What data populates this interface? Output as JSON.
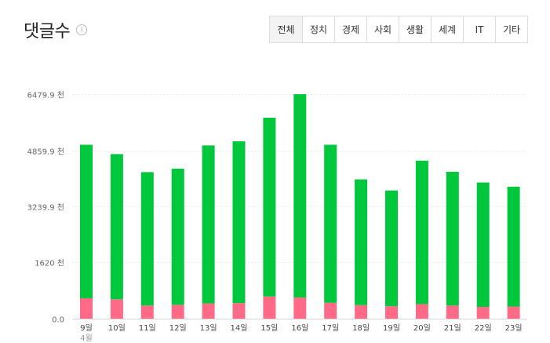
{
  "header": {
    "title": "댓글수",
    "info_icon": "info-icon"
  },
  "tabs": [
    {
      "label": "전체",
      "active": true
    },
    {
      "label": "정치",
      "active": false
    },
    {
      "label": "경제",
      "active": false
    },
    {
      "label": "사회",
      "active": false
    },
    {
      "label": "생활",
      "active": false
    },
    {
      "label": "세계",
      "active": false
    },
    {
      "label": "IT",
      "active": false
    },
    {
      "label": "기타",
      "active": false
    }
  ],
  "chart_data": {
    "type": "bar",
    "stacked": true,
    "categories": [
      "9일",
      "10일",
      "11일",
      "12일",
      "13일",
      "14일",
      "15일",
      "16일",
      "17일",
      "18일",
      "19일",
      "20일",
      "21일",
      "22일",
      "23일"
    ],
    "x_sub_label": "4월",
    "series": [
      {
        "color": "#ff6b86",
        "values": [
          590,
          560,
          380,
          400,
          440,
          450,
          640,
          610,
          460,
          390,
          360,
          420,
          380,
          340,
          350
        ]
      },
      {
        "color": "#00c73c",
        "values": [
          4430,
          4190,
          3850,
          3930,
          4560,
          4670,
          5160,
          5870,
          4560,
          3630,
          3340,
          4140,
          3860,
          3590,
          3460
        ]
      }
    ],
    "y_ticks": [
      "0.0",
      "1620 천",
      "3239.9 천",
      "4859.9 천",
      "6479.9 천"
    ],
    "y_tick_values": [
      0,
      1620,
      3239.9,
      4859.9,
      6479.9
    ],
    "ylim": [
      0,
      6479.9
    ]
  }
}
